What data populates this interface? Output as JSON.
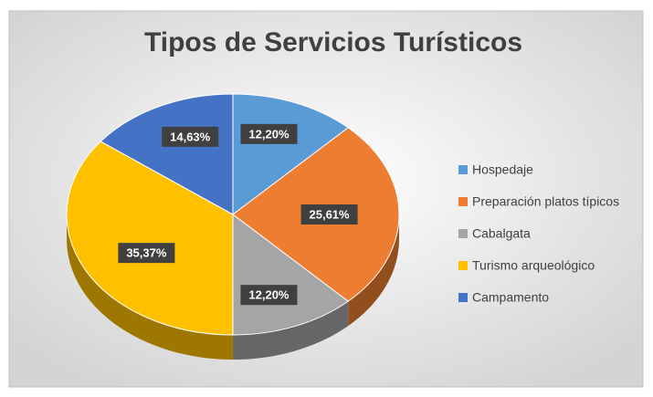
{
  "chart_data": {
    "type": "pie",
    "title": "Tipos de Servicios Turísticos",
    "categories": [
      "Hospedaje",
      "Preparación platos típicos",
      "Cabalgata",
      "Turismo arqueológico",
      "Campamento"
    ],
    "values": [
      12.2,
      25.61,
      12.2,
      35.37,
      14.63
    ],
    "value_labels": [
      "12,20%",
      "25,61%",
      "12,20%",
      "35,37%",
      "14,63%"
    ],
    "colors": [
      "#5b9bd5",
      "#ed7d31",
      "#a5a5a5",
      "#ffc000",
      "#4472c4"
    ],
    "legend": "right"
  }
}
